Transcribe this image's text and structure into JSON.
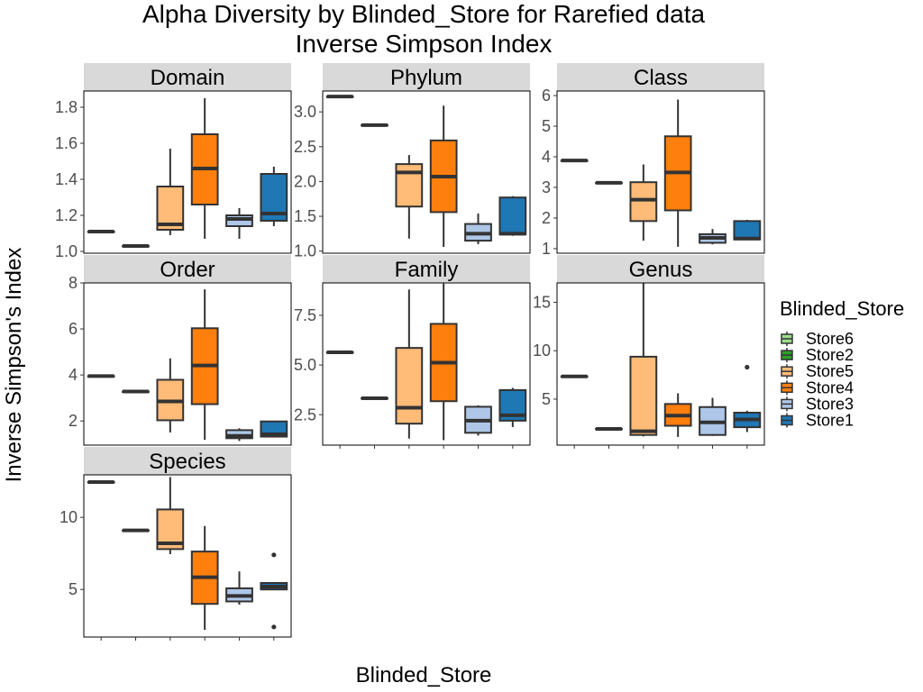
{
  "chart_data": {
    "type": "box",
    "title": "Alpha Diversity by Blinded_Store for Rarefied data",
    "subtitle": "Inverse Simpson Index",
    "xlabel": "Blinded_Store",
    "ylabel": "Inverse Simpson's Index",
    "grid": false,
    "legend": {
      "title": "Blinded_Store",
      "position": "right",
      "entries": [
        {
          "name": "Store6",
          "color": "#98df8a"
        },
        {
          "name": "Store2",
          "color": "#2ca02c"
        },
        {
          "name": "Store5",
          "color": "#ffbb78"
        },
        {
          "name": "Store4",
          "color": "#ff7f0e"
        },
        {
          "name": "Store3",
          "color": "#aec7e8"
        },
        {
          "name": "Store1",
          "color": "#1f77b4"
        }
      ]
    },
    "box_order": [
      "Store6",
      "Store2",
      "Store5",
      "Store4",
      "Store3",
      "Store1"
    ],
    "panels": [
      {
        "strip": "Domain",
        "ylim": [
          0.99,
          1.89
        ],
        "yticks": [
          1.0,
          1.2,
          1.4,
          1.6,
          1.8
        ],
        "ytick_labels": [
          "1.0",
          "1.2",
          "1.4",
          "1.6",
          "1.8"
        ],
        "boxes": [
          {
            "group": "Store6",
            "min": 1.11,
            "q1": 1.11,
            "median": 1.11,
            "q3": 1.11,
            "max": 1.11,
            "outliers": []
          },
          {
            "group": "Store2",
            "min": 1.03,
            "q1": 1.03,
            "median": 1.03,
            "q3": 1.03,
            "max": 1.03,
            "outliers": []
          },
          {
            "group": "Store5",
            "min": 1.09,
            "q1": 1.12,
            "median": 1.15,
            "q3": 1.36,
            "max": 1.57,
            "outliers": []
          },
          {
            "group": "Store4",
            "min": 1.07,
            "q1": 1.26,
            "median": 1.46,
            "q3": 1.65,
            "max": 1.85,
            "outliers": []
          },
          {
            "group": "Store3",
            "min": 1.07,
            "q1": 1.14,
            "median": 1.18,
            "q3": 1.2,
            "max": 1.24,
            "outliers": []
          },
          {
            "group": "Store1",
            "min": 1.14,
            "q1": 1.17,
            "median": 1.21,
            "q3": 1.43,
            "max": 1.47,
            "outliers": []
          }
        ]
      },
      {
        "strip": "Phylum",
        "ylim": [
          0.97,
          3.3
        ],
        "yticks": [
          1.0,
          1.5,
          2.0,
          2.5,
          3.0
        ],
        "ytick_labels": [
          "1.0",
          "1.5",
          "2.0",
          "2.5",
          "3.0"
        ],
        "boxes": [
          {
            "group": "Store6",
            "min": 3.22,
            "q1": 3.22,
            "median": 3.22,
            "q3": 3.22,
            "max": 3.22,
            "outliers": []
          },
          {
            "group": "Store2",
            "min": 2.81,
            "q1": 2.81,
            "median": 2.81,
            "q3": 2.81,
            "max": 2.81,
            "outliers": []
          },
          {
            "group": "Store5",
            "min": 1.18,
            "q1": 1.64,
            "median": 2.13,
            "q3": 2.25,
            "max": 2.38,
            "outliers": []
          },
          {
            "group": "Store4",
            "min": 1.06,
            "q1": 1.56,
            "median": 2.07,
            "q3": 2.59,
            "max": 3.09,
            "outliers": []
          },
          {
            "group": "Store3",
            "min": 1.1,
            "q1": 1.15,
            "median": 1.25,
            "q3": 1.39,
            "max": 1.54,
            "outliers": []
          },
          {
            "group": "Store1",
            "min": 1.22,
            "q1": 1.24,
            "median": 1.25,
            "q3": 1.77,
            "max": 1.79,
            "outliers": []
          }
        ]
      },
      {
        "strip": "Class",
        "ylim": [
          0.85,
          6.15
        ],
        "yticks": [
          1,
          2,
          3,
          4,
          5,
          6
        ],
        "ytick_labels": [
          "1",
          "2",
          "3",
          "4",
          "5",
          "6"
        ],
        "boxes": [
          {
            "group": "Store6",
            "min": 3.88,
            "q1": 3.88,
            "median": 3.88,
            "q3": 3.88,
            "max": 3.88,
            "outliers": []
          },
          {
            "group": "Store2",
            "min": 3.15,
            "q1": 3.15,
            "median": 3.15,
            "q3": 3.15,
            "max": 3.15,
            "outliers": []
          },
          {
            "group": "Store5",
            "min": 1.26,
            "q1": 1.9,
            "median": 2.6,
            "q3": 3.17,
            "max": 3.75,
            "outliers": []
          },
          {
            "group": "Store4",
            "min": 1.06,
            "q1": 2.25,
            "median": 3.49,
            "q3": 4.67,
            "max": 5.87,
            "outliers": []
          },
          {
            "group": "Store3",
            "min": 1.14,
            "q1": 1.19,
            "median": 1.35,
            "q3": 1.47,
            "max": 1.64,
            "outliers": []
          },
          {
            "group": "Store1",
            "min": 1.29,
            "q1": 1.3,
            "median": 1.33,
            "q3": 1.9,
            "max": 1.94,
            "outliers": []
          }
        ]
      },
      {
        "strip": "Order",
        "ylim": [
          0.95,
          8.0
        ],
        "yticks": [
          2,
          4,
          6,
          8
        ],
        "ytick_labels": [
          "2",
          "4",
          "6",
          "8"
        ],
        "boxes": [
          {
            "group": "Store6",
            "min": 3.95,
            "q1": 3.95,
            "median": 3.95,
            "q3": 3.95,
            "max": 3.95,
            "outliers": []
          },
          {
            "group": "Store2",
            "min": 3.28,
            "q1": 3.28,
            "median": 3.28,
            "q3": 3.28,
            "max": 3.28,
            "outliers": []
          },
          {
            "group": "Store5",
            "min": 1.5,
            "q1": 2.03,
            "median": 2.85,
            "q3": 3.79,
            "max": 4.72,
            "outliers": []
          },
          {
            "group": "Store4",
            "min": 1.18,
            "q1": 2.73,
            "median": 4.41,
            "q3": 6.03,
            "max": 7.72,
            "outliers": []
          },
          {
            "group": "Store3",
            "min": 1.13,
            "q1": 1.25,
            "median": 1.35,
            "q3": 1.6,
            "max": 1.68,
            "outliers": []
          },
          {
            "group": "Store1",
            "min": 1.3,
            "q1": 1.32,
            "median": 1.42,
            "q3": 1.98,
            "max": 2.0,
            "outliers": []
          }
        ]
      },
      {
        "strip": "Family",
        "ylim": [
          0.97,
          9.13
        ],
        "yticks": [
          2.5,
          5.0,
          7.5
        ],
        "ytick_labels": [
          "2.5",
          "5.0",
          "7.5"
        ],
        "boxes": [
          {
            "group": "Store6",
            "min": 5.64,
            "q1": 5.64,
            "median": 5.64,
            "q3": 5.64,
            "max": 5.64,
            "outliers": []
          },
          {
            "group": "Store2",
            "min": 3.33,
            "q1": 3.33,
            "median": 3.33,
            "q3": 3.33,
            "max": 3.33,
            "outliers": []
          },
          {
            "group": "Store5",
            "min": 1.3,
            "q1": 2.05,
            "median": 2.85,
            "q3": 5.86,
            "max": 8.8,
            "outliers": []
          },
          {
            "group": "Store4",
            "min": 1.22,
            "q1": 3.18,
            "median": 5.12,
            "q3": 7.07,
            "max": 9.1,
            "outliers": []
          },
          {
            "group": "Store3",
            "min": 1.45,
            "q1": 1.59,
            "median": 2.2,
            "q3": 2.9,
            "max": 2.97,
            "outliers": []
          },
          {
            "group": "Store1",
            "min": 1.88,
            "q1": 2.2,
            "median": 2.47,
            "q3": 3.74,
            "max": 3.85,
            "outliers": []
          }
        ]
      },
      {
        "strip": "Genus",
        "ylim": [
          0.25,
          17.0
        ],
        "yticks": [
          5,
          10,
          15
        ],
        "ytick_labels": [
          "5",
          "10",
          "15"
        ],
        "boxes": [
          {
            "group": "Store6",
            "min": 7.35,
            "q1": 7.35,
            "median": 7.35,
            "q3": 7.35,
            "max": 7.35,
            "outliers": []
          },
          {
            "group": "Store2",
            "min": 1.93,
            "q1": 1.93,
            "median": 1.93,
            "q3": 1.93,
            "max": 1.93,
            "outliers": []
          },
          {
            "group": "Store5",
            "min": 1.15,
            "q1": 1.3,
            "median": 1.68,
            "q3": 9.38,
            "max": 16.95,
            "outliers": []
          },
          {
            "group": "Store4",
            "min": 1.1,
            "q1": 2.25,
            "median": 3.3,
            "q3": 4.5,
            "max": 5.6,
            "outliers": []
          },
          {
            "group": "Store3",
            "min": 1.2,
            "q1": 1.3,
            "median": 2.6,
            "q3": 4.18,
            "max": 5.13,
            "outliers": []
          },
          {
            "group": "Store1",
            "min": 1.6,
            "q1": 2.1,
            "median": 2.9,
            "q3": 3.6,
            "max": 3.8,
            "outliers": [
              8.3
            ]
          }
        ]
      },
      {
        "strip": "Species",
        "ylim": [
          1.7,
          12.95
        ],
        "yticks": [
          5,
          10
        ],
        "ytick_labels": [
          "5",
          "10"
        ],
        "boxes": [
          {
            "group": "Store6",
            "min": 12.45,
            "q1": 12.45,
            "median": 12.45,
            "q3": 12.45,
            "max": 12.45,
            "outliers": []
          },
          {
            "group": "Store2",
            "min": 9.1,
            "q1": 9.1,
            "median": 9.1,
            "q3": 9.1,
            "max": 9.1,
            "outliers": []
          },
          {
            "group": "Store5",
            "min": 7.45,
            "q1": 7.8,
            "median": 8.2,
            "q3": 10.55,
            "max": 12.8,
            "outliers": []
          },
          {
            "group": "Store4",
            "min": 2.2,
            "q1": 4.0,
            "median": 5.85,
            "q3": 7.63,
            "max": 9.4,
            "outliers": []
          },
          {
            "group": "Store3",
            "min": 3.95,
            "q1": 4.17,
            "median": 4.55,
            "q3": 5.08,
            "max": 6.25,
            "outliers": []
          },
          {
            "group": "Store1",
            "min": 4.95,
            "q1": 5.0,
            "median": 5.2,
            "q3": 5.45,
            "max": 5.45,
            "outliers": [
              7.4,
              2.4
            ]
          }
        ]
      }
    ]
  }
}
